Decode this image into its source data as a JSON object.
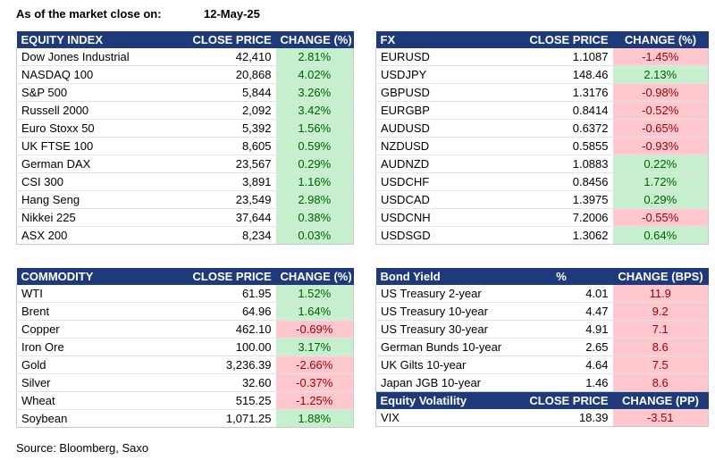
{
  "header": {
    "label": "As of the market close on:",
    "date": "12-May-25"
  },
  "equity": {
    "headers": [
      "EQUITY INDEX",
      "CLOSE PRICE",
      "CHANGE (%)"
    ],
    "rows": [
      {
        "name": "Dow Jones Industrial",
        "close": "42,410",
        "change": "2.81%",
        "dir": "up"
      },
      {
        "name": "NASDAQ 100",
        "close": "20,868",
        "change": "4.02%",
        "dir": "up"
      },
      {
        "name": "S&P 500",
        "close": "5,844",
        "change": "3.26%",
        "dir": "up"
      },
      {
        "name": "Russell 2000",
        "close": "2,092",
        "change": "3.42%",
        "dir": "up"
      },
      {
        "name": "Euro Stoxx 50",
        "close": "5,392",
        "change": "1.56%",
        "dir": "up"
      },
      {
        "name": "UK FTSE 100",
        "close": "8,605",
        "change": "0.59%",
        "dir": "up"
      },
      {
        "name": "German DAX",
        "close": "23,567",
        "change": "0.29%",
        "dir": "up"
      },
      {
        "name": "CSI 300",
        "close": "3,891",
        "change": "1.16%",
        "dir": "up"
      },
      {
        "name": "Hang Seng",
        "close": "23,549",
        "change": "2.98%",
        "dir": "up"
      },
      {
        "name": "Nikkei 225",
        "close": "37,644",
        "change": "0.38%",
        "dir": "up"
      },
      {
        "name": "ASX 200",
        "close": "8,234",
        "change": "0.03%",
        "dir": "up"
      }
    ]
  },
  "fx": {
    "headers": [
      "FX",
      "CLOSE PRICE",
      "CHANGE (%)"
    ],
    "rows": [
      {
        "name": "EURUSD",
        "close": "1.1087",
        "change": "-1.45%",
        "dir": "dn"
      },
      {
        "name": "USDJPY",
        "close": "148.46",
        "change": "2.13%",
        "dir": "up"
      },
      {
        "name": "GBPUSD",
        "close": "1.3176",
        "change": "-0.98%",
        "dir": "dn"
      },
      {
        "name": "EURGBP",
        "close": "0.8414",
        "change": "-0.52%",
        "dir": "dn"
      },
      {
        "name": "AUDUSD",
        "close": "0.6372",
        "change": "-0.65%",
        "dir": "dn"
      },
      {
        "name": "NZDUSD",
        "close": "0.5855",
        "change": "-0.93%",
        "dir": "dn"
      },
      {
        "name": "AUDNZD",
        "close": "1.0883",
        "change": "0.22%",
        "dir": "up"
      },
      {
        "name": "USDCHF",
        "close": "0.8456",
        "change": "1.72%",
        "dir": "up"
      },
      {
        "name": "USDCAD",
        "close": "1.3975",
        "change": "0.29%",
        "dir": "up"
      },
      {
        "name": "USDCNH",
        "close": "7.2006",
        "change": "-0.55%",
        "dir": "dn"
      },
      {
        "name": "USDSGD",
        "close": "1.3062",
        "change": "0.64%",
        "dir": "up"
      }
    ]
  },
  "commodity": {
    "headers": [
      "COMMODITY",
      "CLOSE PRICE",
      "CHANGE (%)"
    ],
    "rows": [
      {
        "name": "WTI",
        "close": "61.95",
        "change": "1.52%",
        "dir": "up"
      },
      {
        "name": "Brent",
        "close": "64.96",
        "change": "1.64%",
        "dir": "up"
      },
      {
        "name": "Copper",
        "close": "462.10",
        "change": "-0.69%",
        "dir": "dn"
      },
      {
        "name": "Iron Ore",
        "close": "100.00",
        "change": "3.17%",
        "dir": "up"
      },
      {
        "name": "Gold",
        "close": "3,236.39",
        "change": "-2.66%",
        "dir": "dn"
      },
      {
        "name": "Silver",
        "close": "32.60",
        "change": "-0.37%",
        "dir": "dn"
      },
      {
        "name": "Wheat",
        "close": "515.25",
        "change": "-1.25%",
        "dir": "dn"
      },
      {
        "name": "Soybean",
        "close": "1,071.25",
        "change": "1.88%",
        "dir": "up"
      }
    ]
  },
  "bond": {
    "headers": [
      "Bond Yield",
      "%",
      "CHANGE (BPS)"
    ],
    "rows": [
      {
        "name": "US Treasury 2-year",
        "close": "4.01",
        "change": "11.9",
        "dir": "dn"
      },
      {
        "name": "US Treasury 10-year",
        "close": "4.47",
        "change": "9.2",
        "dir": "dn"
      },
      {
        "name": "US Treasury 30-year",
        "close": "4.91",
        "change": "7.1",
        "dir": "dn"
      },
      {
        "name": "German Bunds 10-year",
        "close": "2.65",
        "change": "8.6",
        "dir": "dn"
      },
      {
        "name": "UK Gilts 10-year",
        "close": "4.64",
        "change": "7.5",
        "dir": "dn"
      },
      {
        "name": "Japan JGB 10-year",
        "close": "1.46",
        "change": "8.6",
        "dir": "dn"
      }
    ]
  },
  "volatility": {
    "headers": [
      "Equity Volatility",
      "CLOSE PRICE",
      "CHANGE (PP)"
    ],
    "rows": [
      {
        "name": "VIX",
        "close": "18.39",
        "change": "-3.51",
        "dir": "dn"
      }
    ]
  },
  "source": "Source: Bloomberg, Saxo",
  "colors": {
    "header_bg": "#1f3a7a",
    "up_bg": "#c6efce",
    "up_text": "#006100",
    "down_bg": "#ffc7ce",
    "down_text": "#9c0006"
  }
}
